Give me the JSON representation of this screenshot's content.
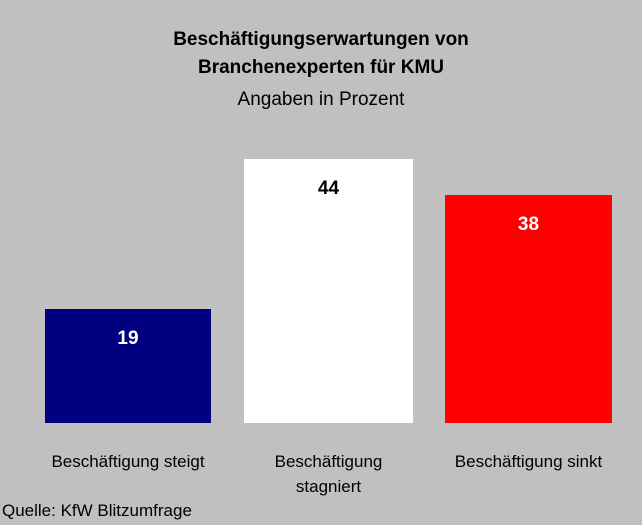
{
  "chart_data": {
    "type": "bar",
    "title": [
      "Beschäftigungserwartungen von",
      "Branchenexperten für KMU"
    ],
    "subtitle": "Angaben in Prozent",
    "categories": [
      "Beschäftigung steigt",
      "Beschäftigung stagniert",
      "Beschäftigung sinkt"
    ],
    "values": [
      19,
      44,
      38
    ],
    "colors": [
      "#000080",
      "#ffffff",
      "#ff0000"
    ],
    "source": "Quelle: KfW Blitzumfrage"
  }
}
